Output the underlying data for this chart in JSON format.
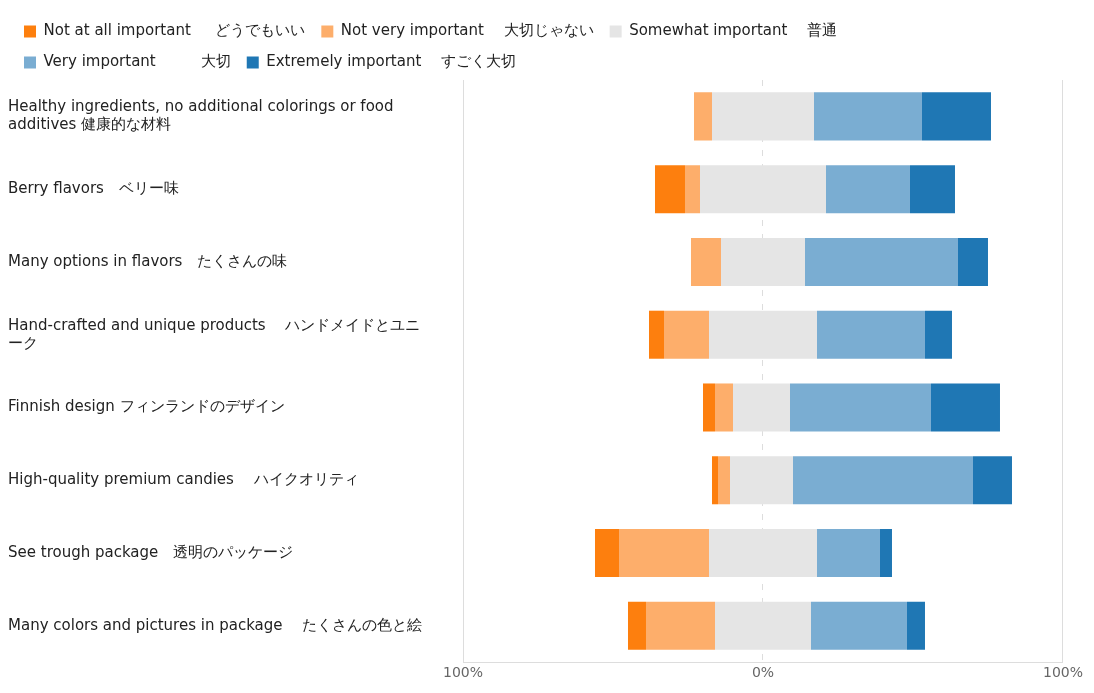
{
  "chart_data": {
    "type": "bar",
    "orientation": "horizontal",
    "categories": [
      "Healthy ingredients, no additional colorings or food additives 健康的な材料",
      "Berry flavors　ベリー味",
      "Many options in flavors　たくさんの味",
      "Hand-crafted and unique products　 ハンドメイドとユニーク",
      "Finnish design フィンランドのデザイン",
      "High-quality premium candies　 ハイクオリティ",
      "See trough package　透明のパッケージ",
      "Many colors and pictures in package　 たくさんの色と絵"
    ],
    "series": [
      {
        "name": "Not at all important　  どうでもいい",
        "color": "#fd7f0e",
        "base": [
          null,
          -36,
          null,
          -38,
          -20,
          -17,
          -56,
          -45
        ],
        "values": [
          null,
          10,
          null,
          5,
          4,
          2,
          8,
          6
        ]
      },
      {
        "name": "Not very important　 大切じゃない",
        "color": "#fdae6b",
        "base": [
          -23,
          -26,
          -24,
          -33,
          -16,
          -15,
          -48,
          -39
        ],
        "values": [
          6,
          5,
          10,
          15,
          6,
          4,
          30,
          23
        ]
      },
      {
        "name": "Somewhat important　 普通",
        "color": "#e5e5e5",
        "base": [
          -17,
          -21,
          -14,
          -18,
          -10,
          -11,
          -18,
          -16
        ],
        "values": [
          34,
          42,
          28,
          36,
          19,
          21,
          36,
          32
        ]
      },
      {
        "name": "Very important　　　大切",
        "color": "#7aadd2",
        "base": [
          17,
          21,
          14,
          18,
          9,
          10,
          18,
          16
        ],
        "values": [
          36,
          28,
          51,
          36,
          47,
          60,
          21,
          32
        ]
      },
      {
        "name": "Extremely important　 すごく大切",
        "color": "#1f77b4",
        "base": [
          53,
          49,
          65,
          54,
          56,
          70,
          39,
          48
        ],
        "values": [
          23,
          15,
          10,
          9,
          23,
          13,
          4,
          6
        ]
      }
    ],
    "xlim": [
      -100,
      100
    ],
    "xticks": [
      {
        "value": -100,
        "label": "100%"
      },
      {
        "value": 0,
        "label": "0%"
      },
      {
        "value": 100,
        "label": "100%"
      }
    ],
    "grid": "x",
    "legend": "top left"
  }
}
